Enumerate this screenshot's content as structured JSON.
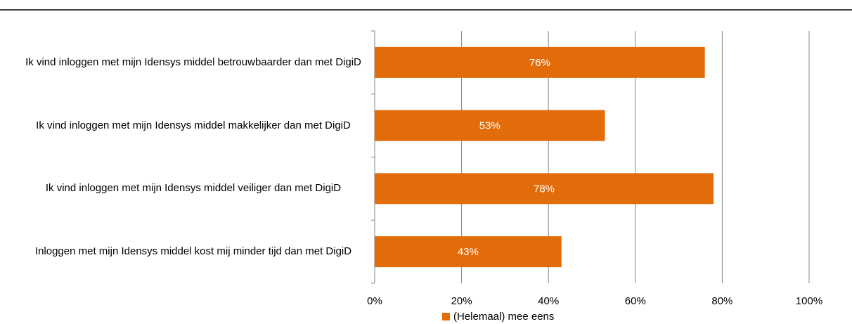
{
  "chart_data": {
    "type": "bar",
    "orientation": "horizontal",
    "categories": [
      "Ik vind inloggen met mijn Idensys middel betrouwbaarder dan met DigiD",
      "Ik vind inloggen met mijn Idensys middel makkelijker dan met DigiD",
      "Ik vind inloggen met mijn Idensys middel veiliger dan met DigiD",
      "Inloggen met mijn Idensys middel kost mij minder tijd dan met DigiD"
    ],
    "series": [
      {
        "name": "(Helemaal) mee eens",
        "color": "#e36c0a",
        "values": [
          76,
          53,
          78,
          43
        ],
        "value_labels": [
          "76%",
          "53%",
          "78%",
          "43%"
        ]
      }
    ],
    "xlim": [
      0,
      100
    ],
    "xticks": [
      {
        "value": 0,
        "label": "0%"
      },
      {
        "value": 20,
        "label": "20%"
      },
      {
        "value": 40,
        "label": "40%"
      },
      {
        "value": 60,
        "label": "60%"
      },
      {
        "value": 80,
        "label": "80%"
      },
      {
        "value": 100,
        "label": "100%"
      }
    ],
    "grid": true,
    "legend": "bottom"
  }
}
